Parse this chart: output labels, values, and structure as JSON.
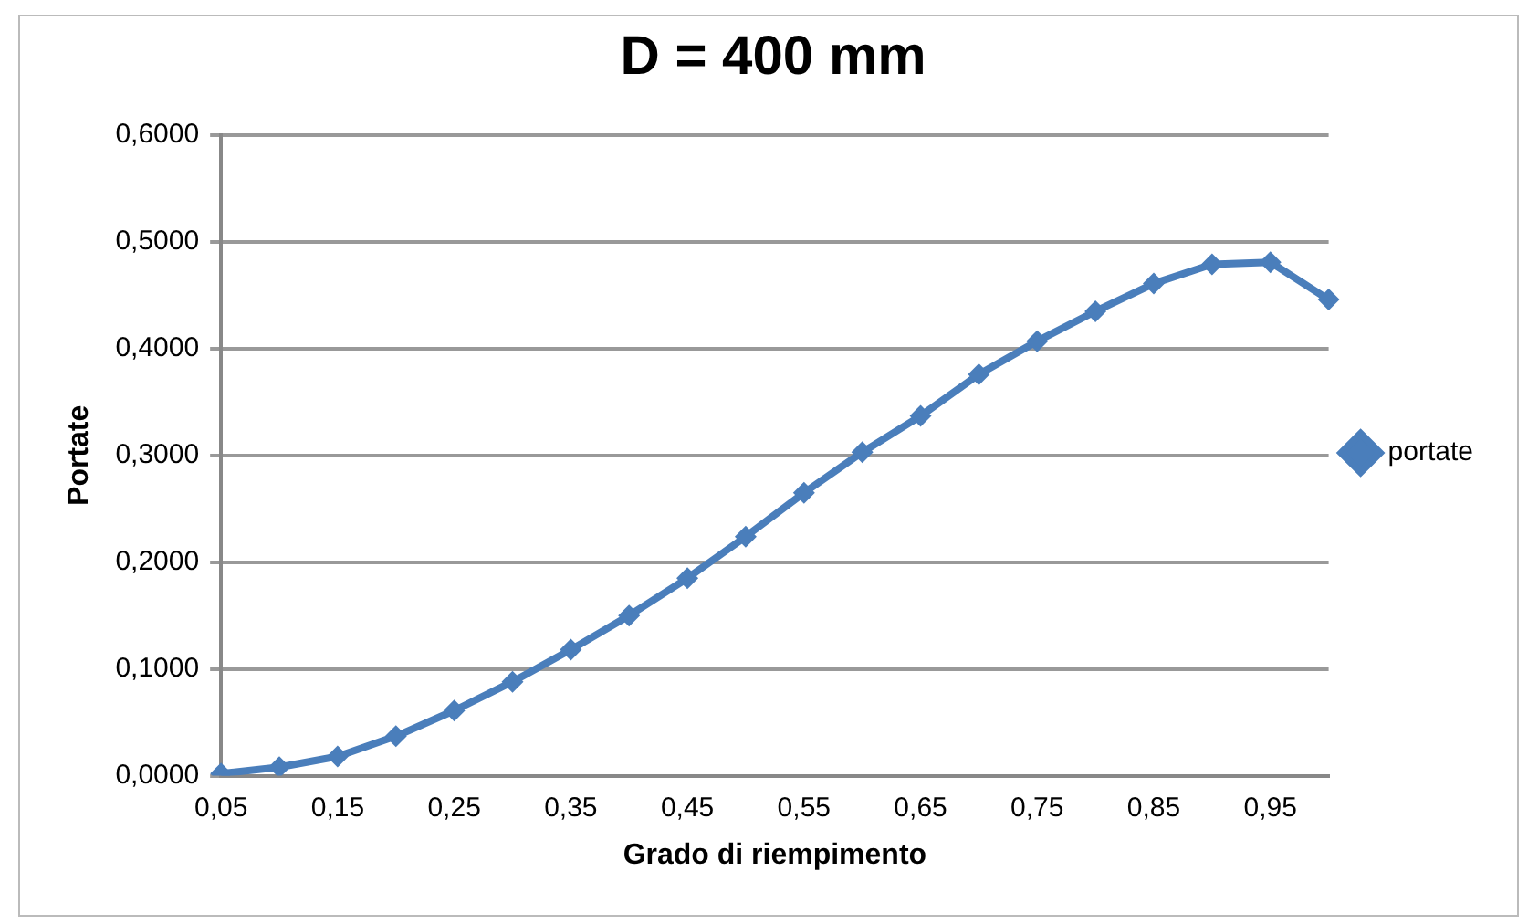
{
  "chart_data": {
    "type": "line",
    "title": "D = 400 mm",
    "xlabel": "Grado di riempimento",
    "ylabel": "Portate",
    "categories": [
      "0,05",
      null,
      "0,15",
      null,
      "0,25",
      null,
      "0,35",
      null,
      "0,45",
      null,
      "0,55",
      null,
      "0,65",
      null,
      "0,75",
      null,
      "0,85",
      null,
      "0,95",
      null
    ],
    "series": [
      {
        "name": "portate",
        "color": "#4a7ebb",
        "values": [
          0.002,
          0.008,
          0.018,
          0.037,
          0.061,
          0.088,
          0.118,
          0.15,
          0.185,
          0.224,
          0.265,
          0.303,
          0.337,
          0.376,
          0.407,
          0.435,
          0.461,
          0.479,
          0.481,
          0.446
        ]
      }
    ],
    "ylim": [
      0,
      0.6
    ],
    "yticks": [
      {
        "value": 0,
        "label": "0,0000"
      },
      {
        "value": 0.1,
        "label": "0,1000"
      },
      {
        "value": 0.2,
        "label": "0,2000"
      },
      {
        "value": 0.3,
        "label": "0,3000"
      },
      {
        "value": 0.4,
        "label": "0,4000"
      },
      {
        "value": 0.5,
        "label": "0,5000"
      },
      {
        "value": 0.6,
        "label": "0,6000"
      }
    ],
    "grid": "y",
    "legend": "right",
    "marker": "diamond",
    "line_style": "solid"
  }
}
